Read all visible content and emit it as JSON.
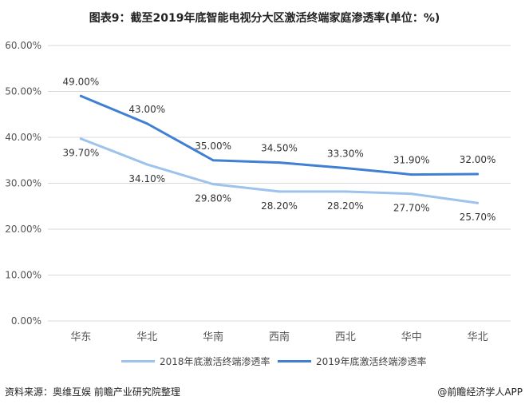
{
  "title": "图表9：截至2019年底智能电视分大区激活终端家庭渗透率(单位：%)",
  "footer": {
    "source": "资料来源：奥维互娱 前瞻产业研究院整理",
    "brand": "@前瞻经济学人APP"
  },
  "colors": {
    "series_2018": "#9dc3ec",
    "series_2019": "#3f7fd4",
    "grid": "#d9d9d9",
    "axis_text": "#555555"
  },
  "chart_data": {
    "type": "line",
    "title": "图表9：截至2019年底智能电视分大区激活终端家庭渗透率(单位：%)",
    "categories": [
      "华东",
      "华北",
      "华南",
      "西南",
      "西北",
      "华中",
      "华北"
    ],
    "y_ticks": [
      "0.00%",
      "10.00%",
      "20.00%",
      "30.00%",
      "40.00%",
      "50.00%",
      "60.00%"
    ],
    "ylim": [
      0,
      60
    ],
    "grid": true,
    "legend_position": "bottom",
    "series": [
      {
        "name": "2018年底激活终端渗透率",
        "values": [
          39.7,
          34.1,
          29.8,
          28.2,
          28.2,
          27.7,
          25.7
        ],
        "labels": [
          "39.70%",
          "34.10%",
          "29.80%",
          "28.20%",
          "28.20%",
          "27.70%",
          "25.70%"
        ]
      },
      {
        "name": "2019年底激活终端渗透率",
        "values": [
          49.0,
          43.0,
          35.0,
          34.5,
          33.3,
          31.9,
          32.0
        ],
        "labels": [
          "49.00%",
          "43.00%",
          "35.00%",
          "34.50%",
          "33.30%",
          "31.90%",
          "32.00%"
        ]
      }
    ]
  }
}
